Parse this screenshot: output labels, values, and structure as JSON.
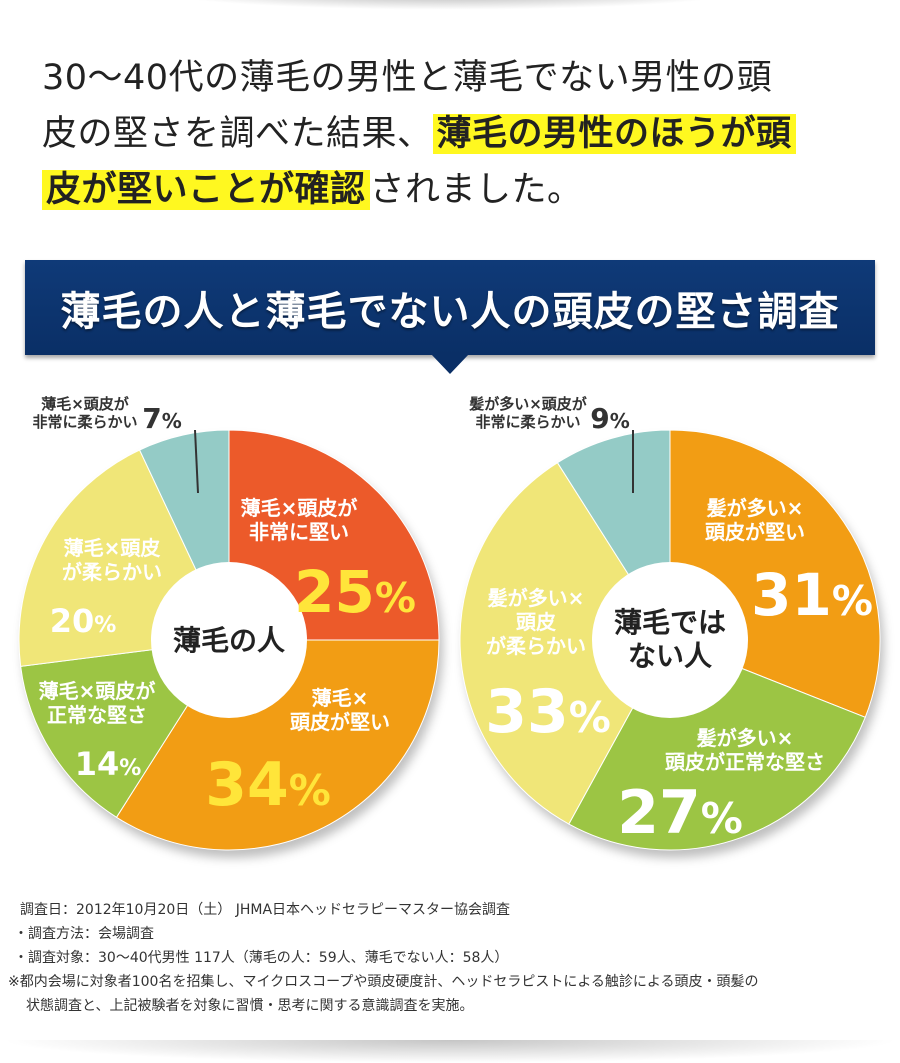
{
  "intro": {
    "line1": "30～40代の薄毛の男性と薄毛でない男性の頭",
    "line2_plain": "皮の堅さを調べた結果、",
    "line2_hl": "薄毛の男性のほうが頭",
    "line3_hl": "皮が堅いことが確認",
    "line3_plain": "されました。"
  },
  "banner_title": "薄毛の人と薄毛でない人の頭皮の堅さ調査",
  "chart_data": [
    {
      "type": "pie",
      "center_label": [
        "薄毛の人"
      ],
      "slices": [
        {
          "label": [
            "薄毛×頭皮が",
            "非常に堅い"
          ],
          "value": 25,
          "pct": "25",
          "color": "#ec5a2a"
        },
        {
          "label": [
            "薄毛×",
            "頭皮が堅い"
          ],
          "value": 34,
          "pct": "34",
          "color": "#f29d14"
        },
        {
          "label": [
            "薄毛×頭皮が",
            "正常な堅さ"
          ],
          "value": 14,
          "pct": "14",
          "color": "#9cc544"
        },
        {
          "label": [
            "薄毛×頭皮",
            "が柔らかい"
          ],
          "value": 20,
          "pct": "20",
          "color": "#f0e678"
        },
        {
          "label": [
            "薄毛×頭皮が",
            "非常に柔らかい"
          ],
          "value": 7,
          "pct": "7",
          "color": "#94cbc6"
        }
      ]
    },
    {
      "type": "pie",
      "center_label": [
        "薄毛では",
        "ない人"
      ],
      "slices": [
        {
          "label": [
            "髪が多い×",
            "頭皮が堅い"
          ],
          "value": 31,
          "pct": "31",
          "color": "#f29d14"
        },
        {
          "label": [
            "髪が多い×",
            "頭皮が正常な堅さ"
          ],
          "value": 27,
          "pct": "27",
          "color": "#9cc544"
        },
        {
          "label": [
            "髪が多い×",
            "頭皮",
            "が柔らかい"
          ],
          "value": 33,
          "pct": "33",
          "color": "#f0e678"
        },
        {
          "label": [
            "髪が多い×頭皮が",
            "非常に柔らかい"
          ],
          "value": 9,
          "pct": "9",
          "color": "#94cbc6"
        }
      ]
    }
  ],
  "notes": {
    "date": "調査日：2012年10月20日（土） JHMA日本ヘッドセラピーマスター協会調査",
    "method": "・調査方法：会場調査",
    "target": "・調査対象：30～40代男性 117人（薄毛の人：59人、薄毛でない人：58人）",
    "remark1": "※都内会場に対象者100名を招集し、マイクロスコープや頭皮硬度計、ヘッドセラピストによる触診による頭皮・頭髪の",
    "remark2": "状態調査と、上記被験者を対象に習慣・思考に関する意識調査を実施。"
  }
}
